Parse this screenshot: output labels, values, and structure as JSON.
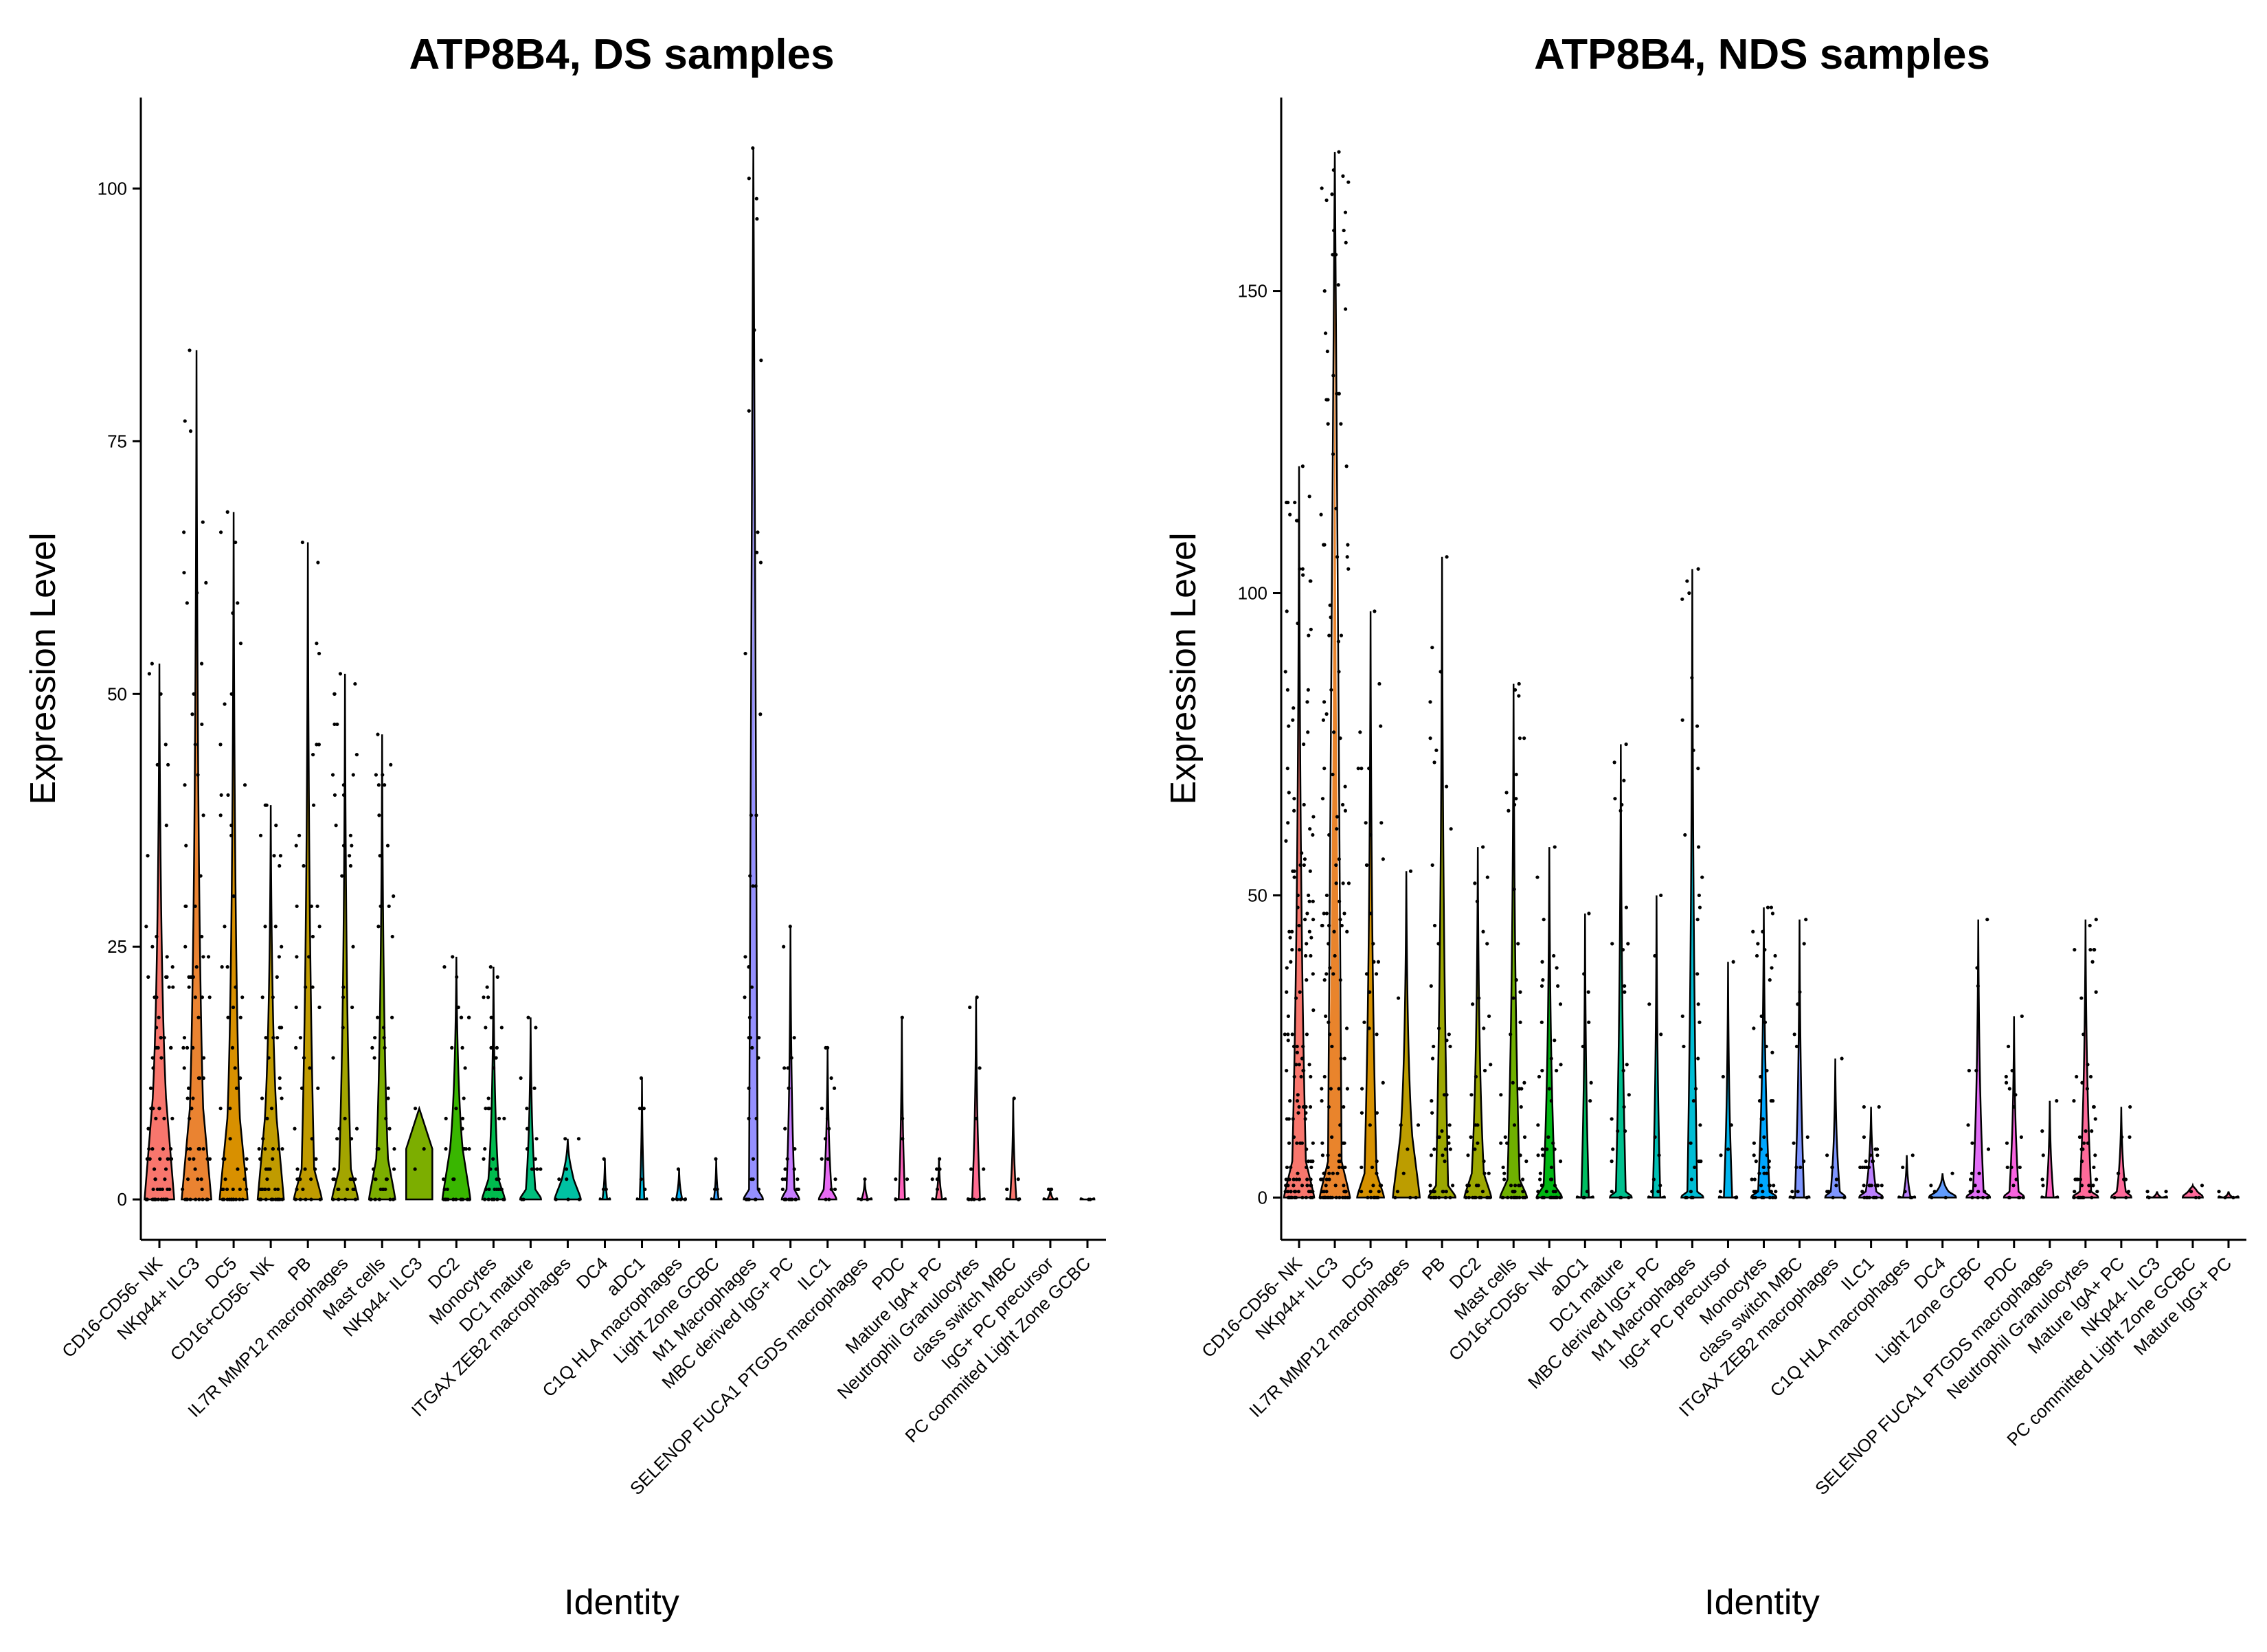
{
  "chart_data": [
    {
      "type": "violin",
      "title": "ATP8B4, DS samples",
      "xlabel": "Identity",
      "ylabel": "Expression Level",
      "ylim": [
        -4,
        109
      ],
      "yticks": [
        0,
        25,
        50,
        75,
        100
      ],
      "grid": false,
      "legend": "none",
      "categories": [
        {
          "name": "CD16-CD56- NK",
          "max": 53,
          "width": 0.85,
          "color": "#F8766D",
          "density": 80,
          "mid": 10
        },
        {
          "name": "NKp44+ ILC3",
          "max": 84,
          "width": 0.85,
          "color": "#EA8331",
          "density": 75,
          "mid": 9
        },
        {
          "name": "DC5",
          "max": 68,
          "width": 0.8,
          "color": "#D89000",
          "density": 55,
          "mid": 8
        },
        {
          "name": "CD16+CD56- NK",
          "max": 39,
          "width": 0.75,
          "color": "#C09B00",
          "density": 60,
          "mid": 8
        },
        {
          "name": "PB",
          "max": 65,
          "width": 0.8,
          "color": "#C09B00",
          "density": 45,
          "mid": 3
        },
        {
          "name": "IL7R MMP12 macrophages",
          "max": 52,
          "width": 0.75,
          "color": "#A3A500",
          "density": 45,
          "mid": 3
        },
        {
          "name": "Mast cells",
          "max": 46,
          "width": 0.75,
          "color": "#7CAE00",
          "density": 45,
          "mid": 4
        },
        {
          "name": "NKp44- ILC3",
          "max": 9,
          "width": 0.75,
          "color": "#7CAE00",
          "density": 3,
          "mid": 5,
          "flat": true
        },
        {
          "name": "DC2",
          "max": 24,
          "width": 0.8,
          "color": "#39B600",
          "density": 40,
          "mid": 5
        },
        {
          "name": "Monocytes",
          "max": 23,
          "width": 0.65,
          "color": "#00BB4E",
          "density": 40,
          "mid": 2
        },
        {
          "name": "DC1 mature",
          "max": 18,
          "width": 0.6,
          "color": "#00BF7D",
          "density": 15,
          "mid": 1
        },
        {
          "name": "ITGAX ZEB2 macrophages",
          "max": 6,
          "width": 0.75,
          "color": "#00C1A3",
          "density": 8,
          "mid": 2
        },
        {
          "name": "DC4",
          "max": 4,
          "width": 0.3,
          "color": "#00BFC4",
          "density": 3,
          "mid": 0
        },
        {
          "name": "aDC1",
          "max": 12,
          "width": 0.3,
          "color": "#00BAE0",
          "density": 5,
          "mid": 0
        },
        {
          "name": "C1Q HLA macrophages",
          "max": 3,
          "width": 0.4,
          "color": "#00B0F6",
          "density": 5,
          "mid": 0
        },
        {
          "name": "Light Zone GCBC",
          "max": 4,
          "width": 0.3,
          "color": "#35A2FF",
          "density": 3,
          "mid": 0
        },
        {
          "name": "M1 Macrophages",
          "max": 104,
          "width": 0.55,
          "color": "#9590FF",
          "density": 40,
          "mid": 1
        },
        {
          "name": "MBC derived IgG+ PC",
          "max": 27,
          "width": 0.5,
          "color": "#C77CFF",
          "density": 30,
          "mid": 1
        },
        {
          "name": "ILC1",
          "max": 15,
          "width": 0.5,
          "color": "#E76BF3",
          "density": 15,
          "mid": 1
        },
        {
          "name": "SELENOP FUCA1 PTGDS macrophages",
          "max": 2,
          "width": 0.4,
          "color": "#FA62DB",
          "density": 3,
          "mid": 0
        },
        {
          "name": "PDC",
          "max": 18,
          "width": 0.4,
          "color": "#FF62BC",
          "density": 6,
          "mid": 0
        },
        {
          "name": "Mature IgA+ PC",
          "max": 4,
          "width": 0.4,
          "color": "#FF6C91",
          "density": 6,
          "mid": 0
        },
        {
          "name": "Neutrophil Granulocytes",
          "max": 20,
          "width": 0.5,
          "color": "#FF6C91",
          "density": 10,
          "mid": 0
        },
        {
          "name": "class switch MBC",
          "max": 10,
          "width": 0.4,
          "color": "#F8766D",
          "density": 6,
          "mid": 0
        },
        {
          "name": "IgG+ PC precursor",
          "max": 1,
          "width": 0.4,
          "color": "#F8766D",
          "density": 3,
          "mid": 0
        },
        {
          "name": "PC commited Light Zone GCBC",
          "max": 0,
          "width": 0.4,
          "color": "#F8766D",
          "density": 2,
          "mid": 0
        }
      ]
    },
    {
      "type": "violin",
      "title": "ATP8B4, NDS samples",
      "xlabel": "Identity",
      "ylabel": "Expression Level",
      "ylim": [
        -7,
        182
      ],
      "yticks": [
        0,
        50,
        100,
        150
      ],
      "grid": false,
      "legend": "none",
      "categories": [
        {
          "name": "CD16-CD56- NK",
          "max": 121,
          "width": 0.9,
          "color": "#F8766D",
          "density": 160,
          "mid": 6
        },
        {
          "name": "NKp44+ ILC3",
          "max": 173,
          "width": 0.9,
          "color": "#E9842C",
          "density": 150,
          "mid": 6
        },
        {
          "name": "DC5",
          "max": 97,
          "width": 0.8,
          "color": "#D69100",
          "density": 45,
          "mid": 4
        },
        {
          "name": "IL7R MMP12 macrophages",
          "max": 54,
          "width": 0.8,
          "color": "#BC9D00",
          "density": 10,
          "mid": 10
        },
        {
          "name": "PB",
          "max": 106,
          "width": 0.8,
          "color": "#9CA700",
          "density": 50,
          "mid": 2
        },
        {
          "name": "DC2",
          "max": 58,
          "width": 0.8,
          "color": "#9CA700",
          "density": 40,
          "mid": 4
        },
        {
          "name": "Mast cells",
          "max": 85,
          "width": 0.8,
          "color": "#6FB000",
          "density": 55,
          "mid": 3
        },
        {
          "name": "CD16+CD56- NK",
          "max": 58,
          "width": 0.75,
          "color": "#00B813",
          "density": 55,
          "mid": 2
        },
        {
          "name": "aDC1",
          "max": 47,
          "width": 0.5,
          "color": "#00BD61",
          "density": 10,
          "mid": 0
        },
        {
          "name": "DC1 mature",
          "max": 75,
          "width": 0.65,
          "color": "#00C08E",
          "density": 25,
          "mid": 1
        },
        {
          "name": "MBC derived IgG+ PC",
          "max": 50,
          "width": 0.5,
          "color": "#00C0B4",
          "density": 10,
          "mid": 0
        },
        {
          "name": "M1 Macrophages",
          "max": 104,
          "width": 0.65,
          "color": "#00BDD4",
          "density": 35,
          "mid": 1
        },
        {
          "name": "IgG+ PC precursor",
          "max": 39,
          "width": 0.55,
          "color": "#00B5EE",
          "density": 8,
          "mid": 0
        },
        {
          "name": "Monocytes",
          "max": 48,
          "width": 0.75,
          "color": "#00A7FF",
          "density": 60,
          "mid": 1
        },
        {
          "name": "class switch MBC",
          "max": 46,
          "width": 0.6,
          "color": "#7F96FF",
          "density": 15,
          "mid": 0
        },
        {
          "name": "ITGAX ZEB2 macrophages",
          "max": 23,
          "width": 0.6,
          "color": "#7F96FF",
          "density": 10,
          "mid": 1
        },
        {
          "name": "ILC1",
          "max": 15,
          "width": 0.7,
          "color": "#BC81FF",
          "density": 35,
          "mid": 1
        },
        {
          "name": "C1Q HLA macrophages",
          "max": 7,
          "width": 0.5,
          "color": "#BC81FF",
          "density": 5,
          "mid": 0
        },
        {
          "name": "DC4",
          "max": 4,
          "width": 0.8,
          "color": "#619CFF",
          "density": 5,
          "mid": 1
        },
        {
          "name": "Light Zone GCBC",
          "max": 46,
          "width": 0.7,
          "color": "#E26EF7",
          "density": 20,
          "mid": 1
        },
        {
          "name": "PDC",
          "max": 30,
          "width": 0.6,
          "color": "#F863DF",
          "density": 20,
          "mid": 1
        },
        {
          "name": "SELENOP FUCA1 PTGDS macrophages",
          "max": 16,
          "width": 0.5,
          "color": "#FF62BF",
          "density": 5,
          "mid": 0
        },
        {
          "name": "Neutrophil Granulocytes",
          "max": 46,
          "width": 0.75,
          "color": "#FF6A9A",
          "density": 50,
          "mid": 1
        },
        {
          "name": "Mature IgA+ PC",
          "max": 15,
          "width": 0.6,
          "color": "#FF6A9A",
          "density": 10,
          "mid": 1
        },
        {
          "name": "NKp44- ILC3",
          "max": 1,
          "width": 0.6,
          "color": "#FF6A9A",
          "density": 3,
          "mid": 0
        },
        {
          "name": "PC committed Light Zone GCBC",
          "max": 2,
          "width": 0.6,
          "color": "#FF6A9A",
          "density": 4,
          "mid": 1
        },
        {
          "name": "Mature IgG+ PC",
          "max": 1,
          "width": 0.6,
          "color": "#FF6A9A",
          "density": 3,
          "mid": 0
        }
      ]
    }
  ]
}
